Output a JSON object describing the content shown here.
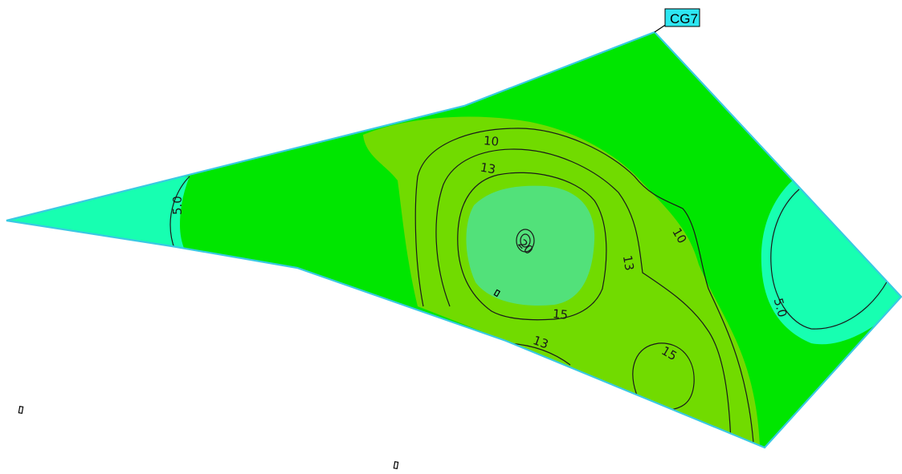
{
  "callout": {
    "label": "CG7"
  },
  "contour_labels": {
    "c10_top": "10",
    "c13_top": "13",
    "c20_peak": "20",
    "c13_right": "13",
    "c10_right": "10",
    "c15_bottom": "15",
    "c13_bottom": "13",
    "c15_small": "15",
    "c50_left": "5.0",
    "c50_right": "5.0"
  },
  "colors": {
    "boundary": "#39c9e3",
    "band_5_below": "#17ffb1",
    "band_5_10": "#00e600",
    "band_10_13": "#71db00",
    "band_15_20": "#52e17a",
    "callout_fill": "#2ee6f2"
  }
}
